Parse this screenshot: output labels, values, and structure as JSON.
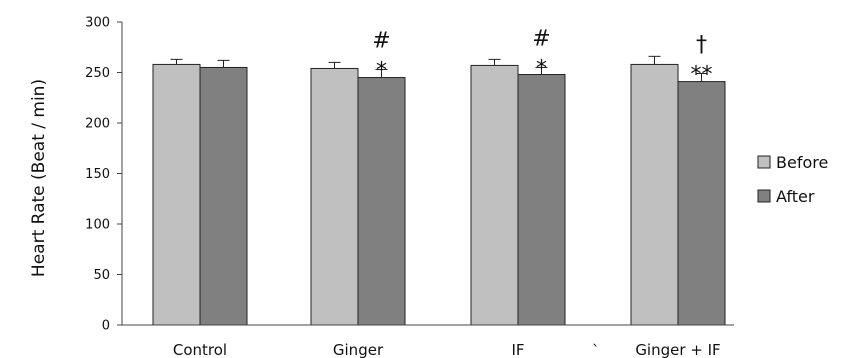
{
  "chart_data": {
    "type": "bar",
    "title": "",
    "xlabel": "",
    "ylabel": "Heart Rate (Beat / min)",
    "ylim": [
      0,
      300
    ],
    "yticks": [
      0,
      50,
      100,
      150,
      200,
      250,
      300
    ],
    "categories": [
      "Control",
      "Ginger",
      "IF",
      "Ginger + IF"
    ],
    "series": [
      {
        "name": "Before",
        "color": "#c0c0c0",
        "values": [
          258,
          254,
          257,
          258
        ],
        "errors": [
          5,
          6,
          6,
          8
        ]
      },
      {
        "name": "After",
        "color": "#808080",
        "values": [
          255,
          245,
          248,
          241
        ],
        "errors": [
          7,
          8,
          7,
          8
        ]
      }
    ],
    "annotations": [
      {
        "category": "Ginger",
        "series": "After",
        "lines": [
          "#",
          "*"
        ]
      },
      {
        "category": "IF",
        "series": "After",
        "lines": [
          "#",
          "*"
        ]
      },
      {
        "category": "Ginger + IF",
        "series": "After",
        "lines": [
          "†",
          "**"
        ]
      }
    ],
    "stray_mark": "`",
    "legend_position": "right",
    "grid": false
  }
}
